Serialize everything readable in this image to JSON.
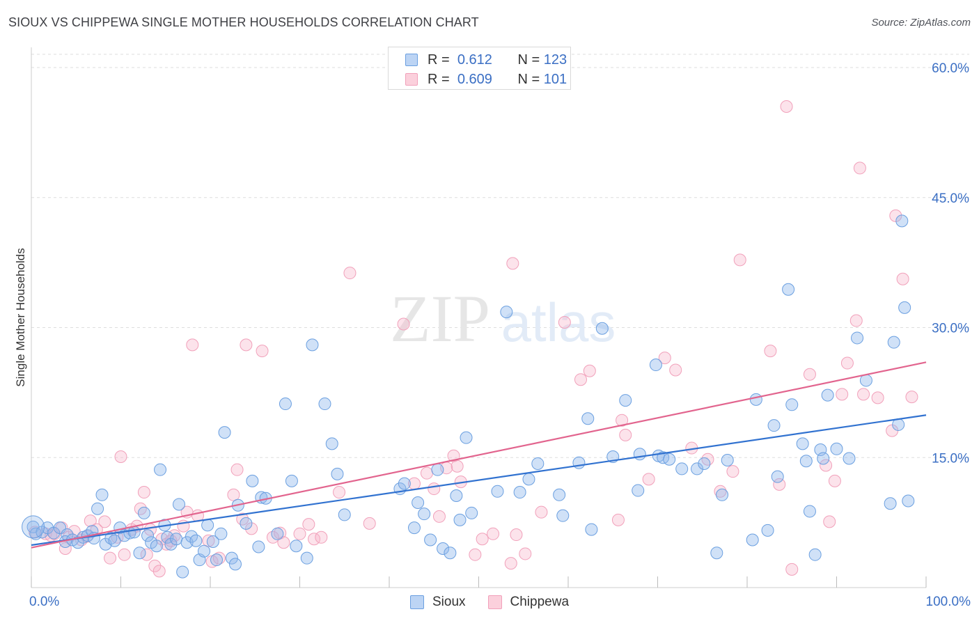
{
  "header": {
    "title": "SIOUX VS CHIPPEWA SINGLE MOTHER HOUSEHOLDS CORRELATION CHART",
    "source": "Source: ZipAtlas.com"
  },
  "watermark": {
    "zip": "ZIP",
    "atlas": "atlas"
  },
  "legend": {
    "rows": [
      {
        "r_label": "R =",
        "r_value": "0.612",
        "n_label": "N =",
        "n_value": "123"
      },
      {
        "r_label": "R =",
        "r_value": "0.609",
        "n_label": "N =",
        "n_value": "101"
      }
    ]
  },
  "chart_data": {
    "type": "scatter",
    "title": "SIOUX VS CHIPPEWA SINGLE MOTHER HOUSEHOLDS CORRELATION CHART",
    "xlabel": "",
    "ylabel": "Single Mother Households",
    "xlim": [
      0,
      100
    ],
    "ylim": [
      0,
      64
    ],
    "x_tick_labels": [
      "0.0%",
      "100.0%"
    ],
    "y_ticks": [
      15,
      30,
      45,
      60
    ],
    "y_tick_labels": [
      "15.0%",
      "30.0%",
      "45.0%",
      "60.0%"
    ],
    "grid": true,
    "colors": {
      "sioux": "#6a9fe0",
      "sioux_line": "#3172d0",
      "chippewa": "#f1a0ba",
      "chippewa_line": "#e2648e",
      "tick_text": "#3b6fc4"
    },
    "series": [
      {
        "name": "Sioux",
        "R": 0.612,
        "N": 123,
        "trend": {
          "x": [
            0,
            100
          ],
          "y": [
            4.9,
            19.9
          ]
        },
        "points": [
          [
            0.2,
            7.0
          ],
          [
            0.5,
            6.2
          ],
          [
            1.2,
            6.4
          ],
          [
            1.8,
            6.9
          ],
          [
            2.5,
            6.3
          ],
          [
            3.2,
            6.9
          ],
          [
            4.0,
            6.1
          ],
          [
            3.8,
            5.3
          ],
          [
            4.6,
            5.5
          ],
          [
            5.2,
            5.2
          ],
          [
            5.8,
            5.8
          ],
          [
            6.3,
            6.0
          ],
          [
            6.8,
            6.5
          ],
          [
            7.0,
            5.7
          ],
          [
            7.4,
            9.1
          ],
          [
            7.9,
            10.7
          ],
          [
            8.3,
            5.0
          ],
          [
            8.9,
            5.7
          ],
          [
            9.3,
            5.4
          ],
          [
            9.9,
            6.9
          ],
          [
            10.4,
            6.0
          ],
          [
            11.0,
            6.3
          ],
          [
            11.5,
            6.4
          ],
          [
            12.1,
            4.0
          ],
          [
            12.6,
            8.6
          ],
          [
            13.0,
            6.0
          ],
          [
            13.4,
            5.2
          ],
          [
            14.0,
            4.8
          ],
          [
            14.4,
            13.6
          ],
          [
            14.9,
            7.2
          ],
          [
            15.2,
            5.8
          ],
          [
            15.6,
            5.0
          ],
          [
            16.2,
            5.6
          ],
          [
            16.5,
            9.6
          ],
          [
            16.9,
            1.8
          ],
          [
            17.4,
            5.2
          ],
          [
            17.9,
            5.9
          ],
          [
            18.4,
            5.4
          ],
          [
            18.8,
            3.2
          ],
          [
            19.3,
            4.2
          ],
          [
            19.7,
            7.2
          ],
          [
            20.3,
            5.3
          ],
          [
            20.7,
            3.2
          ],
          [
            21.2,
            6.2
          ],
          [
            21.6,
            17.9
          ],
          [
            22.4,
            3.4
          ],
          [
            22.8,
            2.7
          ],
          [
            23.1,
            9.5
          ],
          [
            24.0,
            7.4
          ],
          [
            24.7,
            12.3
          ],
          [
            25.4,
            4.7
          ],
          [
            25.7,
            10.4
          ],
          [
            26.2,
            10.3
          ],
          [
            27.5,
            6.2
          ],
          [
            28.4,
            21.2
          ],
          [
            29.1,
            12.3
          ],
          [
            29.6,
            4.8
          ],
          [
            30.8,
            3.4
          ],
          [
            31.4,
            28.0
          ],
          [
            32.8,
            21.2
          ],
          [
            33.6,
            16.6
          ],
          [
            34.2,
            13.1
          ],
          [
            35.0,
            8.4
          ],
          [
            41.2,
            11.4
          ],
          [
            41.7,
            12.0
          ],
          [
            42.8,
            6.9
          ],
          [
            43.2,
            9.8
          ],
          [
            43.9,
            8.5
          ],
          [
            44.6,
            5.5
          ],
          [
            45.4,
            13.6
          ],
          [
            46.0,
            4.5
          ],
          [
            46.8,
            4.0
          ],
          [
            47.5,
            10.6
          ],
          [
            47.9,
            7.8
          ],
          [
            48.6,
            17.3
          ],
          [
            49.2,
            8.6
          ],
          [
            52.1,
            11.1
          ],
          [
            53.1,
            31.8
          ],
          [
            54.6,
            11.0
          ],
          [
            55.6,
            12.5
          ],
          [
            56.6,
            14.3
          ],
          [
            59.0,
            10.7
          ],
          [
            59.4,
            8.3
          ],
          [
            61.2,
            14.4
          ],
          [
            62.2,
            19.5
          ],
          [
            62.6,
            6.7
          ],
          [
            63.8,
            29.9
          ],
          [
            65.0,
            15.1
          ],
          [
            66.4,
            21.6
          ],
          [
            67.8,
            11.2
          ],
          [
            68.0,
            15.4
          ],
          [
            69.8,
            25.7
          ],
          [
            70.1,
            15.2
          ],
          [
            70.6,
            15.0
          ],
          [
            71.3,
            14.8
          ],
          [
            72.7,
            13.7
          ],
          [
            74.4,
            13.7
          ],
          [
            75.2,
            14.3
          ],
          [
            76.6,
            4.0
          ],
          [
            77.2,
            10.7
          ],
          [
            77.8,
            14.7
          ],
          [
            80.6,
            5.5
          ],
          [
            81.0,
            21.7
          ],
          [
            82.3,
            6.6
          ],
          [
            83.0,
            18.7
          ],
          [
            83.4,
            12.8
          ],
          [
            84.6,
            34.4
          ],
          [
            85.0,
            21.1
          ],
          [
            86.2,
            16.6
          ],
          [
            86.6,
            14.6
          ],
          [
            87.0,
            8.8
          ],
          [
            87.6,
            3.8
          ],
          [
            88.2,
            15.9
          ],
          [
            88.5,
            14.9
          ],
          [
            89.0,
            22.2
          ],
          [
            90.0,
            16.0
          ],
          [
            91.4,
            14.9
          ],
          [
            92.3,
            28.8
          ],
          [
            93.3,
            23.9
          ],
          [
            96.0,
            9.7
          ],
          [
            96.4,
            28.3
          ],
          [
            96.9,
            18.8
          ],
          [
            97.3,
            42.3
          ],
          [
            97.6,
            32.3
          ],
          [
            98.0,
            10.0
          ]
        ]
      },
      {
        "name": "Chippewa",
        "R": 0.609,
        "N": 101,
        "trend": {
          "x": [
            0,
            100
          ],
          "y": [
            4.6,
            26.0
          ]
        },
        "points": [
          [
            0.4,
            6.4
          ],
          [
            1.6,
            6.2
          ],
          [
            2.2,
            6.0
          ],
          [
            2.6,
            6.2
          ],
          [
            3.4,
            6.9
          ],
          [
            3.8,
            4.5
          ],
          [
            4.2,
            5.8
          ],
          [
            4.8,
            6.5
          ],
          [
            5.6,
            5.5
          ],
          [
            6.2,
            5.9
          ],
          [
            6.6,
            7.7
          ],
          [
            7.3,
            6.7
          ],
          [
            8.2,
            7.6
          ],
          [
            8.8,
            3.4
          ],
          [
            9.6,
            5.8
          ],
          [
            10.0,
            15.1
          ],
          [
            10.4,
            3.8
          ],
          [
            11.2,
            6.7
          ],
          [
            11.8,
            7.1
          ],
          [
            12.2,
            9.1
          ],
          [
            12.6,
            11.0
          ],
          [
            12.9,
            3.8
          ],
          [
            13.3,
            6.7
          ],
          [
            13.8,
            2.5
          ],
          [
            14.3,
            1.9
          ],
          [
            14.6,
            5.6
          ],
          [
            15.1,
            5.0
          ],
          [
            15.6,
            5.4
          ],
          [
            16.0,
            6.0
          ],
          [
            17.0,
            7.1
          ],
          [
            17.4,
            8.7
          ],
          [
            18.0,
            28.0
          ],
          [
            18.6,
            8.3
          ],
          [
            19.8,
            5.4
          ],
          [
            20.2,
            3.0
          ],
          [
            21.0,
            3.4
          ],
          [
            22.6,
            10.7
          ],
          [
            23.0,
            13.6
          ],
          [
            23.6,
            7.9
          ],
          [
            24.0,
            28.0
          ],
          [
            24.6,
            6.8
          ],
          [
            25.8,
            27.3
          ],
          [
            27.0,
            5.8
          ],
          [
            27.8,
            6.3
          ],
          [
            28.2,
            5.2
          ],
          [
            30.0,
            6.2
          ],
          [
            31.0,
            7.3
          ],
          [
            31.6,
            5.6
          ],
          [
            32.4,
            5.8
          ],
          [
            34.4,
            11.0
          ],
          [
            35.6,
            36.3
          ],
          [
            37.8,
            7.4
          ],
          [
            41.6,
            30.4
          ],
          [
            42.8,
            12.0
          ],
          [
            44.2,
            13.2
          ],
          [
            45.0,
            11.4
          ],
          [
            45.6,
            8.2
          ],
          [
            46.4,
            13.8
          ],
          [
            47.2,
            15.2
          ],
          [
            47.6,
            14.0
          ],
          [
            48.0,
            12.2
          ],
          [
            49.6,
            3.8
          ],
          [
            50.4,
            5.6
          ],
          [
            51.6,
            6.2
          ],
          [
            53.6,
            2.8
          ],
          [
            53.8,
            37.4
          ],
          [
            54.2,
            6.1
          ],
          [
            55.2,
            3.9
          ],
          [
            57.0,
            8.7
          ],
          [
            59.6,
            30.6
          ],
          [
            61.4,
            24.0
          ],
          [
            62.4,
            25.0
          ],
          [
            65.6,
            7.8
          ],
          [
            66.0,
            19.3
          ],
          [
            66.4,
            17.6
          ],
          [
            69.0,
            12.5
          ],
          [
            70.8,
            26.5
          ],
          [
            72.0,
            25.1
          ],
          [
            73.8,
            16.1
          ],
          [
            75.6,
            14.8
          ],
          [
            77.0,
            11.1
          ],
          [
            78.4,
            13.4
          ],
          [
            79.2,
            37.8
          ],
          [
            82.6,
            27.3
          ],
          [
            83.6,
            11.9
          ],
          [
            84.4,
            55.5
          ],
          [
            85.0,
            2.1
          ],
          [
            87.0,
            24.6
          ],
          [
            88.8,
            14.1
          ],
          [
            89.2,
            7.6
          ],
          [
            89.8,
            12.3
          ],
          [
            90.6,
            22.3
          ],
          [
            91.2,
            25.9
          ],
          [
            92.2,
            30.8
          ],
          [
            92.6,
            48.4
          ],
          [
            93.0,
            22.3
          ],
          [
            94.6,
            21.9
          ],
          [
            96.2,
            18.1
          ],
          [
            96.6,
            42.9
          ],
          [
            97.4,
            35.6
          ],
          [
            98.4,
            22.0
          ]
        ]
      }
    ]
  },
  "bottom_legend": [
    "Sioux",
    "Chippewa"
  ]
}
